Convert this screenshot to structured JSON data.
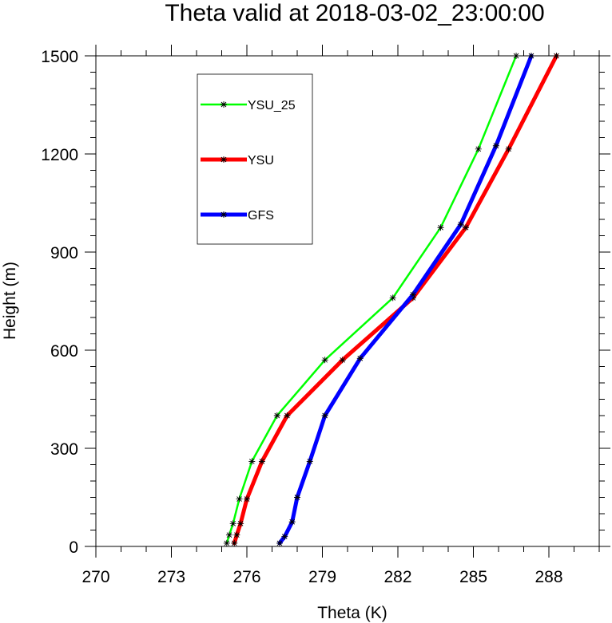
{
  "chart_data": {
    "type": "line",
    "title": "Theta valid at 2018-03-02_23:00:00",
    "xlabel": "Theta (K)",
    "ylabel": "Height (m)",
    "xlim": [
      270,
      290
    ],
    "ylim": [
      0,
      1500
    ],
    "xticks": [
      270,
      273,
      276,
      279,
      282,
      285,
      288
    ],
    "yticks": [
      0,
      300,
      600,
      900,
      1200,
      1500
    ],
    "legend_position": "upper-left",
    "series": [
      {
        "name": "YSU_25",
        "color": "#00ff00",
        "line_width": 2.5,
        "points": [
          [
            275.2,
            10
          ],
          [
            275.3,
            35
          ],
          [
            275.45,
            70
          ],
          [
            275.7,
            145
          ],
          [
            276.2,
            260
          ],
          [
            277.2,
            400
          ],
          [
            279.1,
            570
          ],
          [
            281.8,
            760
          ],
          [
            283.7,
            975
          ],
          [
            285.2,
            1215
          ],
          [
            286.7,
            1500
          ]
        ]
      },
      {
        "name": "YSU",
        "color": "#ff0000",
        "line_width": 5,
        "points": [
          [
            275.5,
            10
          ],
          [
            275.6,
            35
          ],
          [
            275.75,
            70
          ],
          [
            276.0,
            145
          ],
          [
            276.6,
            260
          ],
          [
            277.6,
            400
          ],
          [
            279.8,
            570
          ],
          [
            282.6,
            760
          ],
          [
            284.7,
            975
          ],
          [
            286.4,
            1215
          ],
          [
            288.3,
            1500
          ]
        ]
      },
      {
        "name": "GFS",
        "color": "#0000ff",
        "line_width": 5,
        "points": [
          [
            277.3,
            10
          ],
          [
            277.5,
            30
          ],
          [
            277.8,
            75
          ],
          [
            278.0,
            150
          ],
          [
            278.5,
            260
          ],
          [
            279.1,
            400
          ],
          [
            280.5,
            575
          ],
          [
            282.6,
            770
          ],
          [
            284.5,
            985
          ],
          [
            285.9,
            1225
          ],
          [
            287.3,
            1500
          ]
        ]
      }
    ]
  }
}
